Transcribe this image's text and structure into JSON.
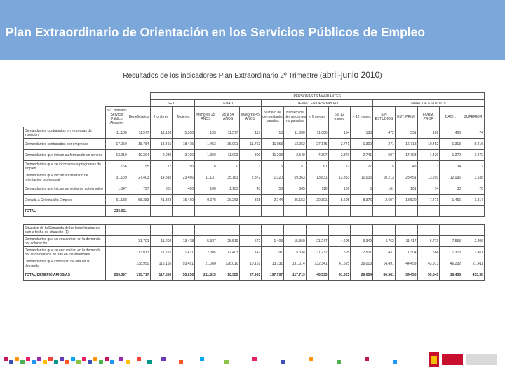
{
  "header": {
    "title": "Plan Extraordinario de Orientación en los Servicios Públicos de Empleo"
  },
  "subtitle": {
    "text": "Resultados de los indicadores Plan Extraordinario 2º Trimestre (",
    "period": "abril-junio 2010",
    "close": ")"
  },
  "table": {
    "group_header": "PERSONAS DEMANDANTES",
    "groups": [
      {
        "name": "SEXO",
        "span": 2
      },
      {
        "name": "EDAD",
        "span": 3
      },
      {
        "name": "TIEMPO EN DESEMPLEO",
        "span": 5
      },
      {
        "name": "NIVEL DE ESTUDIOS",
        "span": 5
      }
    ],
    "columns": [
      "Nº Contratos Servicio Público Atención",
      "Beneficiarios",
      "Hombres",
      "Mujeres",
      "Menores 25 AÑOS",
      "25 a 54 AÑOS",
      "Mayores 45 AÑOS",
      "Número de demandantes parados",
      "Número de demandantes no parados",
      "< 6 meses",
      "6 a 12 meses",
      "> 12 meses",
      "SIN ESTUDIOS",
      "EST. PRIM.",
      "FORM. PROF.",
      "BACH.",
      "SUPERIOR"
    ],
    "sections": [
      {
        "rows": [
          {
            "label": "Demandantes contratados en empresas de inserción",
            "cells": [
              "11.100",
              "11.577",
              "11.100",
              "5.300",
              "193",
              "11.577",
              "117",
              "15",
              "11.000",
              "11.000",
              "154",
              "133",
              "472",
              "531",
              "169",
              "406",
              "74"
            ]
          },
          {
            "label": "Demandantes contratados por empresas",
            "cells": [
              "17.050",
              "18.784",
              "13.455",
              "18.475",
              "1.453",
              "35.001",
              "11.753",
              "11.053",
              "13.052",
              "27.175",
              "2.771",
              "1.300",
              "371",
              "16.713",
              "10.452",
              "1.313",
              "5.416"
            ]
          },
          {
            "label": "Demandantes que inician su formación en centros",
            "cells": [
              "13.210",
              "10.394",
              "2.980",
              "3.700",
              "1.950",
              "11.003",
              "300",
              "11.203",
              "2.540",
              "4.307",
              "2.370",
              "2.741",
              "597",
              "14.708",
              "1.420",
              "1.272",
              "1.272"
            ]
          },
          {
            "label": "Demandantes que se incorporan a programas de empleo",
            "cells": [
              "156",
              "55",
              "77",
              "56",
              "8",
              "0",
              "3",
              "5",
              "51",
              "61",
              "27",
              "27",
              "15",
              "48",
              "13",
              "34",
              "7"
            ]
          },
          {
            "label": "Demandantes que inician su itinerario de orientación profesional",
            "cells": [
              "31.159",
              "27.403",
              "14.310",
              "23.466",
              "11.137",
              "35.163",
              "2.372",
              "1.320",
              "59.363",
              "13.831",
              "13.383",
              "11.005",
              "10.213",
              "23.451",
              "13.293",
              "12.096",
              "3.538"
            ]
          },
          {
            "label": "Demandantes que inician servicios de autoempleo",
            "cells": [
              "1.347",
              "797",
              "301",
              "400",
              "100",
              "1.103",
              "43",
              "56",
              "305",
              "110",
              "106",
              "5",
              "101",
              "101",
              "74",
              "30",
              "70"
            ]
          },
          {
            "label": "Entrada a Orientación Empleo",
            "cells": [
              "61.138",
              "58.383",
              "41.323",
              "15.410",
              "9.078",
              "26.263",
              "365",
              "2.144",
              "35.153",
              "20.391",
              "8.505",
              "8.376",
              "2.607",
              "13.520",
              "7.471",
              "1.456",
              "1.817"
            ]
          },
          {
            "label": "TOTAL",
            "cells": [
              "235.011"
            ]
          }
        ]
      },
      {
        "rows": [
          {
            "label": "Situación de la Demanda de los beneficiarios del plan a fecha de situación (1)",
            "cells": []
          },
          {
            "label": "Demandantes que se encuentran en la demanda por colocación",
            "cells": [
              null,
              "31.701",
              "11.202",
              "13.478",
              "5.327",
              "25.510",
              "572",
              "1.403",
              "15.360",
              "21.247",
              "4.605",
              "3.349",
              "4.763",
              "11.417",
              "6.773",
              "7.553",
              "2.206"
            ]
          },
          {
            "label": "Demandantes que se encuentran en la demanda por otros motivos de alta en los anteriores",
            "cells": [
              null,
              "13.013",
              "11.252",
              "1.431",
              "2.305",
              "12.403",
              "142",
              "191",
              "5.334",
              "11.232",
              "1.505",
              "2.521",
              "1.437",
              "1.304",
              "1.584",
              "1.313",
              "1.451"
            ]
          },
          {
            "label": "Demandantes que continúan de alta en la demanda",
            "cells": [
              null,
              "138.950",
              "116.155",
              "93.481",
              "21.060",
              "128.010",
              "10.161",
              "13.131",
              "131.014",
              "132.341",
              "41.525",
              "36.013",
              "14.491",
              "44.453",
              "43.913",
              "46.232",
              "21.411"
            ]
          },
          {
            "label": "TOTAL BENEFICIARIOS/AS",
            "cells": [
              "253.397",
              "175.717",
              "117.850",
              "55.256",
              "211.525",
              "10.585",
              "27.981",
              "197.707",
              "117.719",
              "46.533",
              "41.325",
              "29.054",
              "80.581",
              "54.450",
              "59.545",
              "19.436",
              "453.38"
            ]
          }
        ]
      }
    ]
  }
}
